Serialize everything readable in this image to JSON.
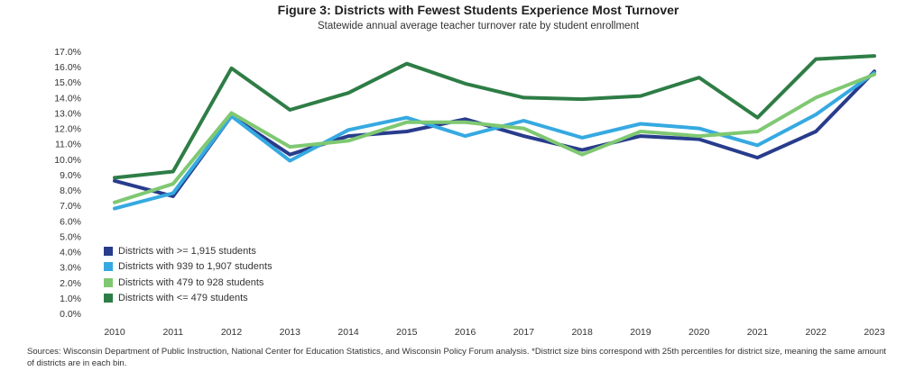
{
  "chart_data": {
    "type": "line",
    "title": "Figure 3: Districts with Fewest Students Experience Most Turnover",
    "subtitle": "Statewide annual average teacher turnover rate by student enrollment",
    "categories": [
      "2010",
      "2011",
      "2012",
      "2013",
      "2014",
      "2015",
      "2016",
      "2017",
      "2018",
      "2019",
      "2020",
      "2021",
      "2022",
      "2023"
    ],
    "ylim": [
      0,
      17
    ],
    "yticks": [
      "0.0%",
      "1.0%",
      "2.0%",
      "3.0%",
      "4.0%",
      "5.0%",
      "6.0%",
      "7.0%",
      "8.0%",
      "9.0%",
      "10.0%",
      "11.0%",
      "12.0%",
      "13.0%",
      "14.0%",
      "15.0%",
      "16.0%",
      "17.0%"
    ],
    "grid": false,
    "legend_position": "bottom-left",
    "series": [
      {
        "name": "Districts with >= 1,915 students",
        "color": "#283c8c",
        "values": [
          8.6,
          7.6,
          12.8,
          10.3,
          11.5,
          11.8,
          12.6,
          11.5,
          10.6,
          11.5,
          11.3,
          10.1,
          11.8,
          15.7
        ]
      },
      {
        "name": "Districts with 939 to 1,907 students",
        "color": "#36a9e1",
        "values": [
          6.8,
          7.8,
          12.8,
          9.9,
          11.9,
          12.7,
          11.5,
          12.5,
          11.4,
          12.3,
          12.0,
          10.9,
          12.9,
          15.6
        ]
      },
      {
        "name": "Districts with 479 to 928 students",
        "color": "#7fc872",
        "values": [
          7.2,
          8.4,
          13.0,
          10.8,
          11.2,
          12.4,
          12.4,
          12.0,
          10.3,
          11.8,
          11.5,
          11.8,
          14.0,
          15.5
        ]
      },
      {
        "name": "Districts with <= 479 students",
        "color": "#2e7d46",
        "values": [
          8.8,
          9.2,
          15.9,
          13.2,
          14.3,
          16.2,
          14.9,
          14.0,
          13.9,
          14.1,
          15.3,
          12.7,
          16.5,
          16.7
        ]
      }
    ]
  },
  "footnote": "Sources: Wisconsin Department of Public Instruction, National Center for Education Statistics, and Wisconsin Policy Forum analysis. *District size bins correspond with 25th percentiles for district size, meaning the same amount of districts are in each bin."
}
